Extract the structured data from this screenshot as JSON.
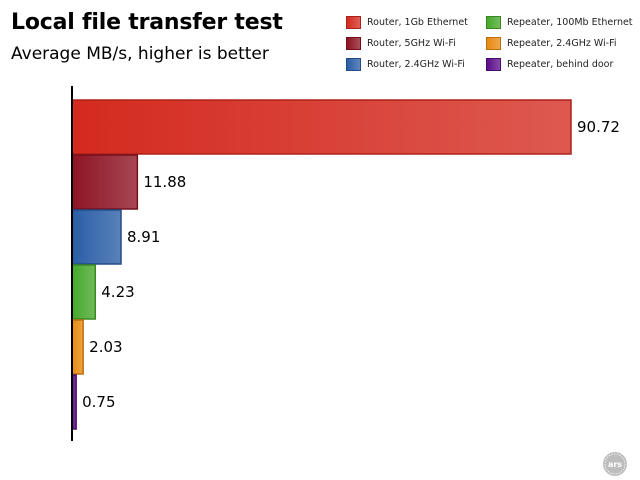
{
  "chart_data": {
    "type": "bar",
    "orientation": "horizontal",
    "title": "Local file transfer test",
    "subtitle": "Average MB/s, higher is better",
    "categories": [
      "Router, 1Gb Ethernet",
      "Router, 5GHz Wi-Fi",
      "Router, 2.4GHz Wi-Fi",
      "Repeater, 100Mb Ethernet",
      "Repeater, 2.4GHz Wi-Fi",
      "Repeater, behind door"
    ],
    "values": [
      90.72,
      11.88,
      8.91,
      4.23,
      2.03,
      0.75
    ],
    "value_labels": [
      "90.72",
      "11.88",
      "8.91",
      "4.23",
      "2.03",
      "0.75"
    ],
    "colors": [
      "#d42a1f",
      "#8e1322",
      "#2a5da6",
      "#46a82b",
      "#e88a10",
      "#5c0d8a"
    ],
    "xlim": [
      0,
      90.72
    ],
    "grid": false,
    "legend_position": "top-right"
  },
  "logo": {
    "text": "ars"
  }
}
